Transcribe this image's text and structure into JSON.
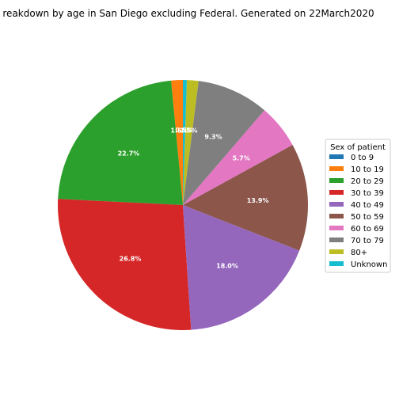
{
  "chart_data": {
    "type": "pie",
    "title": "reakdown by age in San Diego excluding Federal. Generated on 22March2020",
    "legend_title": "Sex of patient",
    "legend_position": "right",
    "slices": [
      {
        "label": "0 to 9",
        "value": 0.0,
        "color": "#1f77b4",
        "display": ""
      },
      {
        "label": "10 to 19",
        "value": 1.5,
        "color": "#ff7f0e",
        "display": "1.5%"
      },
      {
        "label": "20 to 29",
        "value": 22.7,
        "color": "#2ca02c",
        "display": "22.7%"
      },
      {
        "label": "30 to 39",
        "value": 26.8,
        "color": "#d62728",
        "display": "26.8%"
      },
      {
        "label": "40 to 49",
        "value": 18.0,
        "color": "#9467bd",
        "display": "18.0%"
      },
      {
        "label": "50 to 59",
        "value": 13.9,
        "color": "#8c564b",
        "display": "13.9%"
      },
      {
        "label": "60 to 69",
        "value": 5.7,
        "color": "#e377c2",
        "display": "5.7%"
      },
      {
        "label": "70 to 79",
        "value": 9.3,
        "color": "#7f7f7f",
        "display": "9.3%"
      },
      {
        "label": "80+",
        "value": 1.5,
        "color": "#bcbd22",
        "display": "1.5%"
      },
      {
        "label": "Unknown",
        "value": 0.5,
        "color": "#17becf",
        "display": "0.5%"
      }
    ]
  }
}
